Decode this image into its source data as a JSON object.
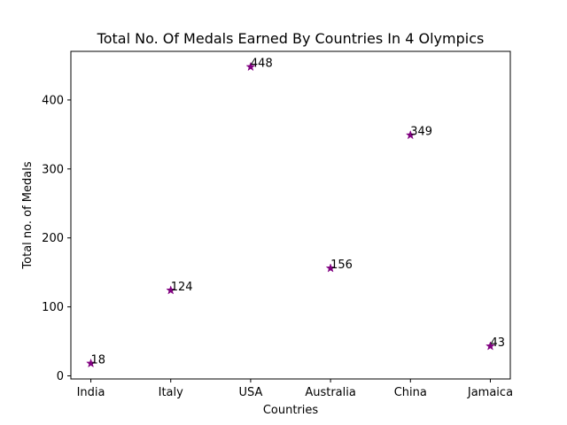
{
  "chart_data": {
    "type": "scatter",
    "title": "Total No. Of Medals Earned By Countries In 4 Olympics",
    "xlabel": "Countries",
    "ylabel": "Total no. of Medals",
    "categories": [
      "India",
      "Italy",
      "USA",
      "Australia",
      "China",
      "Jamaica"
    ],
    "series": [
      {
        "values": [
          18,
          124,
          448,
          156,
          349,
          43
        ]
      }
    ],
    "data_labels": [
      "18",
      "124",
      "448",
      "156",
      "349",
      "43"
    ],
    "ylim": [
      -4.5,
      470.5
    ],
    "yticks": [
      0,
      100,
      200,
      300,
      400
    ],
    "marker": "star",
    "marker_color": "#800080",
    "grid": false
  }
}
